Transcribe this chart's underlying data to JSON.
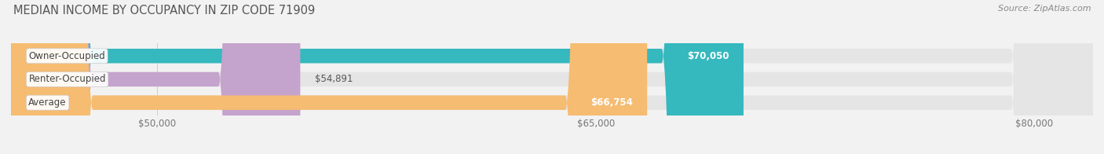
{
  "title": "MEDIAN INCOME BY OCCUPANCY IN ZIP CODE 71909",
  "source": "Source: ZipAtlas.com",
  "categories": [
    "Owner-Occupied",
    "Renter-Occupied",
    "Average"
  ],
  "values": [
    70050,
    54891,
    66754
  ],
  "labels": [
    "$70,050",
    "$54,891",
    "$66,754"
  ],
  "bar_colors": [
    "#35b8be",
    "#c4a3cc",
    "#f5bc72"
  ],
  "label_bg_color": "#35b8be",
  "xlim_min": 45000,
  "xlim_max": 82000,
  "xticks": [
    50000,
    65000,
    80000
  ],
  "xticklabels": [
    "$50,000",
    "$65,000",
    "$80,000"
  ],
  "bg_color": "#f2f2f2",
  "bar_bg_color": "#e5e5e5",
  "title_fontsize": 10.5,
  "source_fontsize": 8,
  "label_fontsize": 8.5,
  "category_fontsize": 8.5,
  "tick_fontsize": 8.5,
  "bar_height": 0.62
}
